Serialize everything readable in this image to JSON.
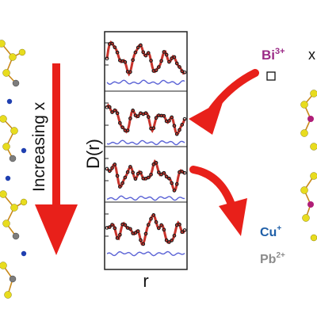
{
  "arrow_label": "Increasing x",
  "plot": {
    "ylabel": "D(r)",
    "xlabel": "r",
    "panel_count": 4
  },
  "legend": {
    "bi": {
      "base": "Bi",
      "sup": "3+",
      "color": "#9b2a86"
    },
    "x_label": "x",
    "cu": {
      "base": "Cu",
      "sup": "+",
      "color": "#1f5fa8"
    },
    "pb": {
      "base": "Pb",
      "sup": "2+",
      "color": "#8c8c8c"
    }
  },
  "colors": {
    "arrow_red": "#e8201a",
    "fit_red": "#c8342c",
    "data_black": "#1a1a1a",
    "residual_blue": "#5b63d6",
    "atom_yellow": "#e8dc1e",
    "atom_grey": "#7d7d7d",
    "atom_blue": "#1f3fb0",
    "atom_magenta": "#b01e78",
    "bond_orange": "#c98a1b"
  }
}
